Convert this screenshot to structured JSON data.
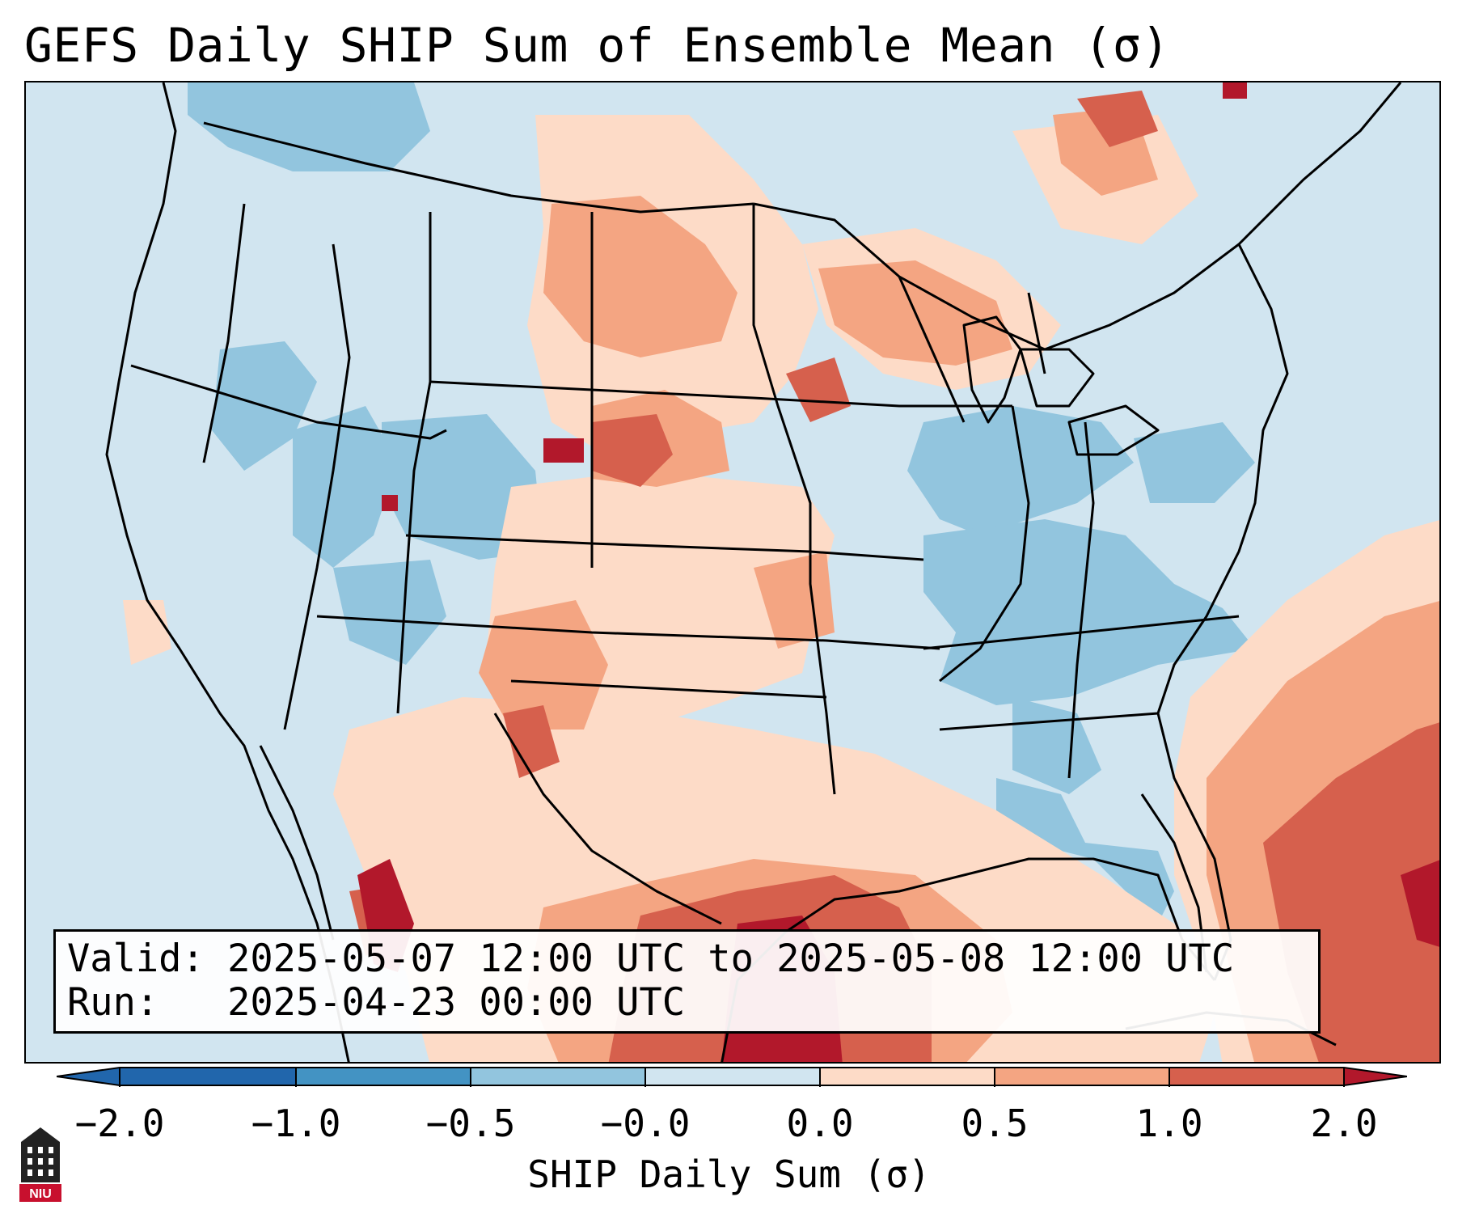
{
  "title": "GEFS Daily SHIP Sum of Ensemble Mean (σ)",
  "info": {
    "valid_label": "Valid:",
    "valid_value": "2025-05-07 12:00 UTC to 2025-05-08 12:00 UTC",
    "run_label": "Run:",
    "run_value": "2025-04-23 00:00 UTC"
  },
  "colorbar": {
    "label": "SHIP Daily Sum (σ)",
    "ticks": [
      "−2.0",
      "−1.0",
      "−0.5",
      "−0.0",
      "0.0",
      "0.5",
      "1.0",
      "2.0"
    ],
    "colors": [
      "#2166ac",
      "#4393c3",
      "#92c5de",
      "#d1e5f0",
      "#fddbc7",
      "#f4a582",
      "#d6604d",
      "#b2182b"
    ]
  },
  "logo": {
    "text": "NIU"
  },
  "legend_colors": {
    "land_outline": "#000000",
    "background_neutral": "#d1e5f0"
  }
}
